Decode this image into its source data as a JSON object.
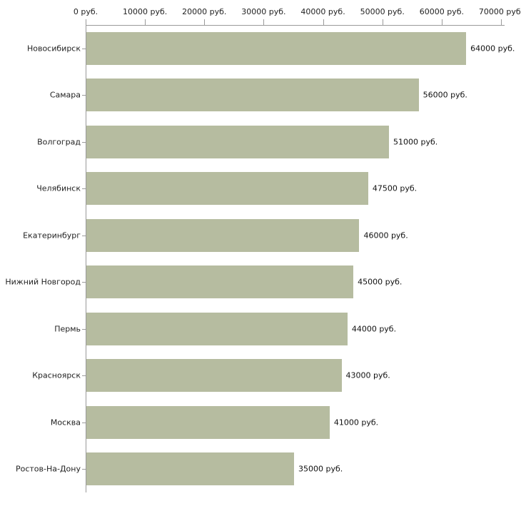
{
  "chart_data": {
    "type": "bar",
    "orientation": "horizontal",
    "title": "",
    "xlabel": "",
    "ylabel": "",
    "xlim": [
      0,
      70000
    ],
    "grid": false,
    "legend": false,
    "categories": [
      "Новосибирск",
      "Самара",
      "Волгоград",
      "Челябинск",
      "Екатеринбург",
      "Нижний Новгород",
      "Пермь",
      "Красноярск",
      "Москва",
      "Ростов-На-Дону"
    ],
    "values": [
      64000,
      56000,
      51000,
      47500,
      46000,
      45000,
      44000,
      43000,
      41000,
      35000
    ],
    "value_labels": [
      "64000 руб.",
      "56000 руб.",
      "51000 руб.",
      "47500 руб.",
      "46000 руб.",
      "45000 руб.",
      "44000 руб.",
      "43000 руб.",
      "41000 руб.",
      "35000 руб."
    ],
    "x_ticks": [
      0,
      10000,
      20000,
      30000,
      40000,
      50000,
      60000,
      70000
    ],
    "x_tick_labels": [
      "0 руб.",
      "10000 руб.",
      "20000 руб.",
      "30000 руб.",
      "40000 руб.",
      "50000 руб.",
      "60000 руб.",
      "70000 руб."
    ],
    "colors": {
      "bar": "#b6bca0",
      "axis": "#9a9a9a",
      "text": "#222222",
      "background": "#ffffff"
    }
  }
}
